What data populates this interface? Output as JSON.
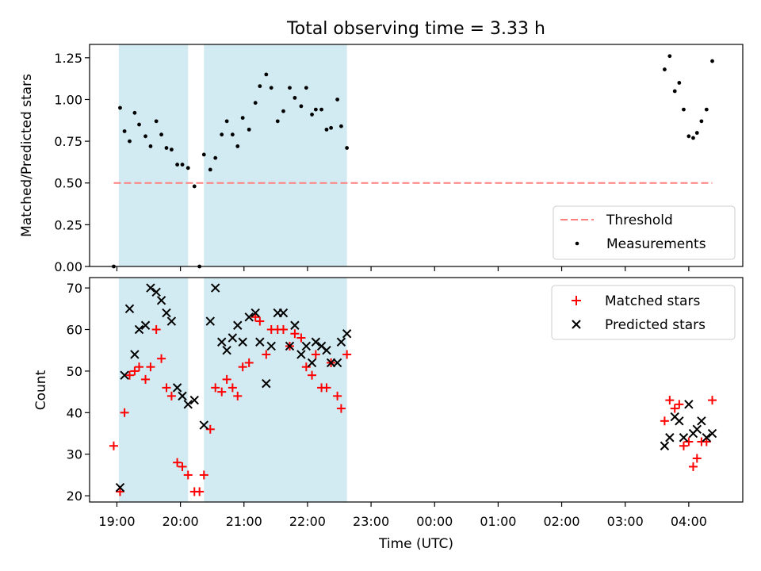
{
  "figure_title": "Total observing time = 3.33 h",
  "x_axis": {
    "label": "Time (UTC)",
    "ticks": [
      "19:00",
      "20:00",
      "21:00",
      "22:00",
      "23:00",
      "00:00",
      "01:00",
      "02:00",
      "03:00",
      "04:00"
    ]
  },
  "colors": {
    "shade": "#add8e6",
    "threshold": "#ff7f7f",
    "measurement": "#000000",
    "matched": "#ff0000",
    "predicted": "#000000"
  },
  "chart_data": [
    {
      "type": "scatter",
      "ylabel": "Matched/Predicted stars",
      "xlabel": "",
      "ylim": [
        0,
        1.33
      ],
      "xlim_hours": [
        18.57,
        28.85
      ],
      "yticks": [
        "0.00",
        "0.25",
        "0.50",
        "0.75",
        "1.00",
        "1.25"
      ],
      "ytick_values": [
        0,
        0.25,
        0.5,
        0.75,
        1.0,
        1.25
      ],
      "shaded_intervals": [
        [
          19.03,
          20.12
        ],
        [
          20.37,
          22.62
        ]
      ],
      "legend": {
        "position": "lower right",
        "threshold_label": "Threshold",
        "measurements_label": "Measurements"
      },
      "threshold": {
        "value": 0.5,
        "x_start": 18.95,
        "x_end": 28.37
      },
      "measurements": {
        "x": [
          18.95,
          19.05,
          19.12,
          19.2,
          19.28,
          19.35,
          19.45,
          19.53,
          19.62,
          19.7,
          19.78,
          19.86,
          19.95,
          20.03,
          20.12,
          20.22,
          20.3,
          20.37,
          20.47,
          20.55,
          20.65,
          20.73,
          20.82,
          20.9,
          20.98,
          21.08,
          21.18,
          21.25,
          21.35,
          21.43,
          21.53,
          21.62,
          21.72,
          21.8,
          21.9,
          21.98,
          22.07,
          22.13,
          22.22,
          22.3,
          22.37,
          22.47,
          22.53,
          22.62,
          27.62,
          27.7,
          27.78,
          27.85,
          27.92,
          28.0,
          28.07,
          28.13,
          28.2,
          28.28,
          28.37
        ],
        "y": [
          0.0,
          0.95,
          0.81,
          0.75,
          0.92,
          0.85,
          0.78,
          0.72,
          0.87,
          0.79,
          0.71,
          0.7,
          0.61,
          0.61,
          0.59,
          0.48,
          0.0,
          0.67,
          0.58,
          0.65,
          0.79,
          0.87,
          0.79,
          0.72,
          0.89,
          0.82,
          0.98,
          1.08,
          1.15,
          1.07,
          0.87,
          0.93,
          1.07,
          1.01,
          0.96,
          1.07,
          0.91,
          0.94,
          0.94,
          0.82,
          0.83,
          1.0,
          0.84,
          0.71,
          1.18,
          1.26,
          1.05,
          1.1,
          0.94,
          0.78,
          0.77,
          0.8,
          0.87,
          0.94,
          1.23
        ]
      }
    },
    {
      "type": "scatter",
      "ylabel": "Count",
      "xlabel": "Time (UTC)",
      "ylim": [
        18.5,
        72.5
      ],
      "xlim_hours": [
        18.57,
        28.85
      ],
      "yticks": [
        "20",
        "30",
        "40",
        "50",
        "60",
        "70"
      ],
      "ytick_values": [
        20,
        30,
        40,
        50,
        60,
        70
      ],
      "shaded_intervals": [
        [
          19.03,
          20.12
        ],
        [
          20.37,
          22.62
        ]
      ],
      "legend": {
        "position": "upper right"
      },
      "series": [
        {
          "name": "Matched stars",
          "marker": "plus",
          "x": [
            18.95,
            19.05,
            19.12,
            19.2,
            19.28,
            19.35,
            19.45,
            19.53,
            19.62,
            19.7,
            19.78,
            19.86,
            19.95,
            20.03,
            20.12,
            20.22,
            20.3,
            20.37,
            20.47,
            20.55,
            20.65,
            20.73,
            20.82,
            20.9,
            20.98,
            21.08,
            21.18,
            21.25,
            21.35,
            21.43,
            21.53,
            21.62,
            21.72,
            21.8,
            21.9,
            21.98,
            22.07,
            22.13,
            22.22,
            22.3,
            22.37,
            22.47,
            22.53,
            22.62,
            27.62,
            27.7,
            27.78,
            27.85,
            27.92,
            28.0,
            28.07,
            28.13,
            28.2,
            28.28,
            28.37
          ],
          "y": [
            32,
            21,
            40,
            49,
            50,
            51,
            48,
            51,
            60,
            53,
            46,
            44,
            28,
            27,
            25,
            21,
            21,
            25,
            36,
            46,
            45,
            48,
            46,
            44,
            51,
            52,
            63,
            62,
            54,
            60,
            60,
            60,
            56,
            59,
            58,
            51,
            49,
            54,
            46,
            46,
            52,
            44,
            41,
            54,
            38,
            43,
            41,
            42,
            32,
            33,
            27,
            29,
            33,
            33,
            43
          ]
        },
        {
          "name": "Predicted stars",
          "marker": "x",
          "x": [
            19.05,
            19.12,
            19.2,
            19.28,
            19.35,
            19.45,
            19.53,
            19.62,
            19.7,
            19.78,
            19.86,
            19.95,
            20.03,
            20.12,
            20.22,
            20.37,
            20.47,
            20.55,
            20.65,
            20.73,
            20.82,
            20.9,
            20.98,
            21.08,
            21.18,
            21.25,
            21.35,
            21.43,
            21.53,
            21.62,
            21.72,
            21.8,
            21.9,
            21.98,
            22.07,
            22.13,
            22.22,
            22.3,
            22.37,
            22.47,
            22.53,
            22.62,
            27.62,
            27.7,
            27.78,
            27.85,
            27.92,
            28.0,
            28.07,
            28.13,
            28.2,
            28.28,
            28.37
          ],
          "y": [
            22,
            49,
            65,
            54,
            60,
            61,
            70,
            69,
            67,
            64,
            62,
            46,
            44,
            42,
            43,
            37,
            62,
            70,
            57,
            55,
            58,
            61,
            57,
            63,
            64,
            57,
            47,
            56,
            64,
            64,
            56,
            61,
            54,
            56,
            52,
            57,
            56,
            55,
            52,
            52,
            57,
            59,
            32,
            34,
            39,
            38,
            34,
            42,
            35,
            36,
            38,
            34,
            35
          ]
        }
      ]
    }
  ]
}
